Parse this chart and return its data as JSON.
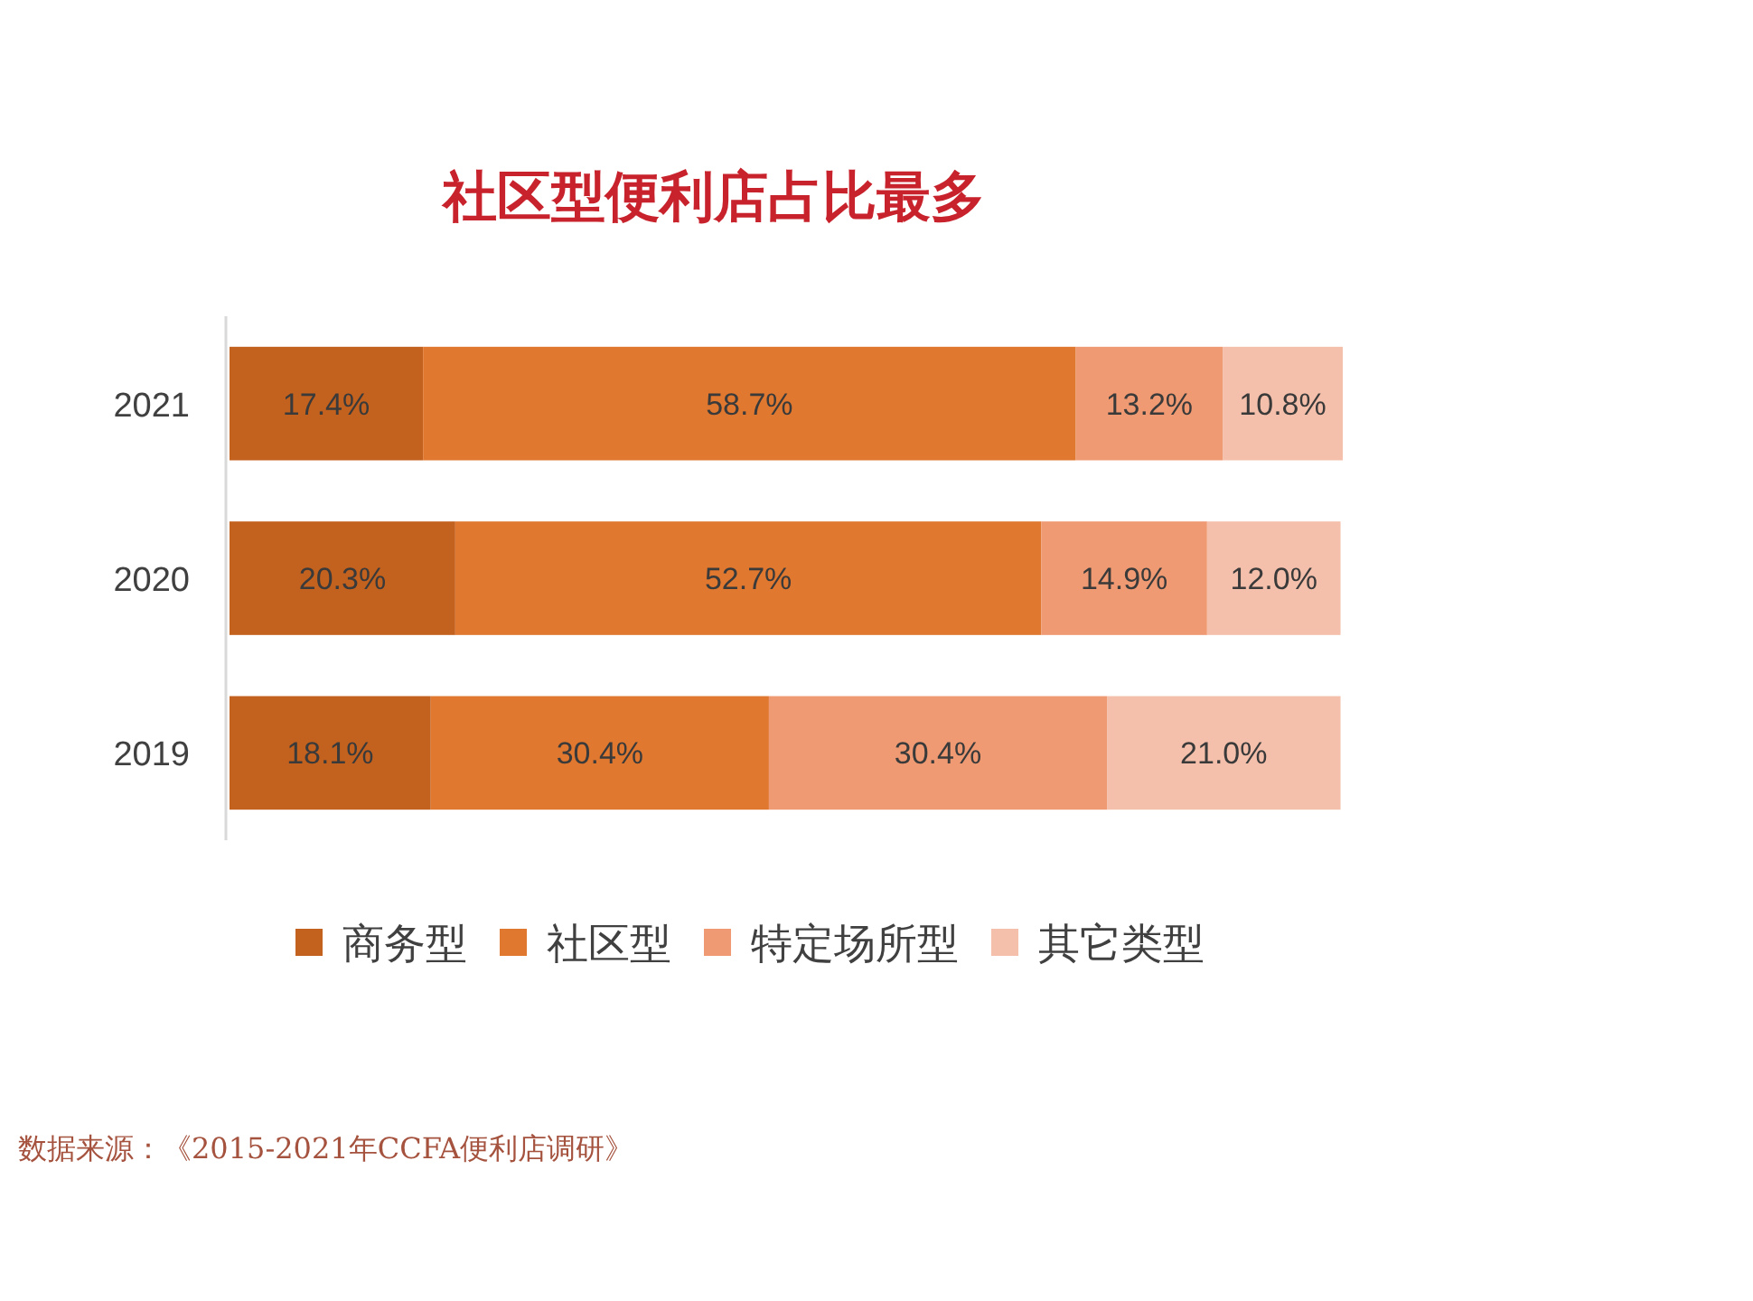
{
  "chart_data": {
    "type": "bar",
    "orientation": "horizontal",
    "stacked": true,
    "title": "社区型便利店占比最多",
    "categories": [
      "2021",
      "2020",
      "2019"
    ],
    "series": [
      {
        "name": "商务型",
        "color": "#c3611f",
        "values": [
          17.4,
          20.3,
          18.1
        ],
        "value_labels": [
          "17.4%",
          "20.3%",
          "18.1%"
        ]
      },
      {
        "name": "社区型",
        "color": "#e07830",
        "values": [
          58.7,
          52.7,
          30.4
        ],
        "value_labels": [
          "58.7%",
          "52.7%",
          "30.4%"
        ]
      },
      {
        "name": "特定场所型",
        "color": "#ef9a72",
        "values": [
          13.2,
          14.9,
          30.4
        ],
        "value_labels": [
          "13.2%",
          "14.9%",
          "30.4%"
        ]
      },
      {
        "name": "其它类型",
        "color": "#f5c0ab",
        "values": [
          10.8,
          12.0,
          21.0
        ],
        "value_labels": [
          "10.8%",
          "12.0%",
          "21.0%"
        ]
      }
    ],
    "xlim": [
      0,
      100.1
    ],
    "tick_labels": "y",
    "legend": "bottom",
    "annotations": [
      "数据来源：《2015-2021年CCFA便利店调研》"
    ]
  }
}
